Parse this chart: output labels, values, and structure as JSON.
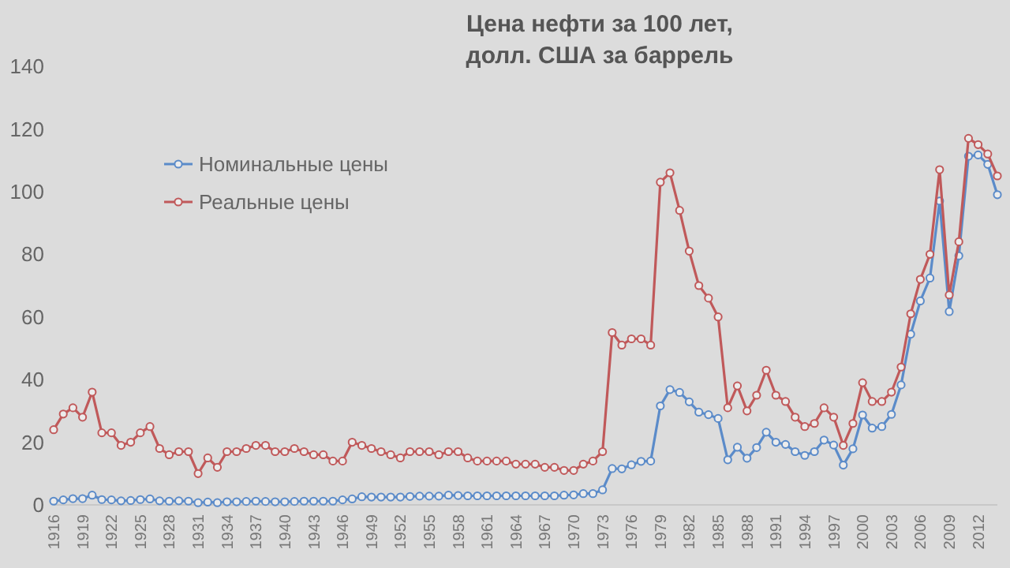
{
  "chart_data": {
    "type": "line",
    "title": "Цена нефти за 100 лет,\nдолл. США за баррель",
    "x": [
      1916,
      1917,
      1918,
      1919,
      1920,
      1921,
      1922,
      1923,
      1924,
      1925,
      1926,
      1927,
      1928,
      1929,
      1930,
      1931,
      1932,
      1933,
      1934,
      1935,
      1936,
      1937,
      1938,
      1939,
      1940,
      1941,
      1942,
      1943,
      1944,
      1945,
      1946,
      1947,
      1948,
      1949,
      1950,
      1951,
      1952,
      1953,
      1954,
      1955,
      1956,
      1957,
      1958,
      1959,
      1960,
      1961,
      1962,
      1963,
      1964,
      1965,
      1966,
      1967,
      1968,
      1969,
      1970,
      1971,
      1972,
      1973,
      1974,
      1975,
      1976,
      1977,
      1978,
      1979,
      1980,
      1981,
      1982,
      1983,
      1984,
      1985,
      1986,
      1987,
      1988,
      1989,
      1990,
      1991,
      1992,
      1993,
      1994,
      1995,
      1996,
      1997,
      1998,
      1999,
      2000,
      2001,
      2002,
      2003,
      2004,
      2005,
      2006,
      2007,
      2008,
      2009,
      2010,
      2011,
      2012,
      2013,
      2014
    ],
    "series": [
      {
        "name": "Номинальные цены",
        "color": "#5b8bc9",
        "values": [
          1.2,
          1.6,
          2,
          2,
          3.1,
          1.7,
          1.6,
          1.3,
          1.4,
          1.7,
          1.9,
          1.3,
          1.2,
          1.3,
          1.2,
          0.7,
          0.9,
          0.7,
          1,
          1,
          1.1,
          1.2,
          1.1,
          1,
          1,
          1.1,
          1.2,
          1.2,
          1.2,
          1.2,
          1.6,
          1.9,
          2.6,
          2.5,
          2.5,
          2.5,
          2.5,
          2.7,
          2.8,
          2.8,
          2.8,
          3.1,
          3,
          2.9,
          2.9,
          2.9,
          2.9,
          2.9,
          2.9,
          2.9,
          2.9,
          2.9,
          2.9,
          3.1,
          3.2,
          3.6,
          3.6,
          4.8,
          11.6,
          11.5,
          12.8,
          13.9,
          14,
          31.6,
          36.8,
          35.9,
          32.9,
          29.6,
          28.8,
          27.6,
          14.4,
          18.4,
          14.9,
          18.3,
          23.2,
          20,
          19.3,
          17,
          15.8,
          17,
          20.7,
          19.1,
          12.7,
          17.9,
          28.7,
          24.5,
          25,
          28.9,
          38.3,
          54.5,
          65.1,
          72.4,
          97,
          61.7,
          79.5,
          111.3,
          111.7,
          108.7,
          99
        ]
      },
      {
        "name": "Реальные цены",
        "color": "#c0595a",
        "values": [
          24,
          29,
          31,
          28,
          36,
          23,
          23,
          19,
          20,
          23,
          25,
          18,
          16,
          17,
          17,
          10,
          15,
          12,
          17,
          17,
          18,
          19,
          19,
          17,
          17,
          18,
          17,
          16,
          16,
          14,
          14,
          20,
          19,
          18,
          17,
          16,
          15,
          17,
          17,
          17,
          16,
          17,
          17,
          15,
          14,
          14,
          14,
          14,
          13,
          13,
          13,
          12,
          12,
          11,
          11,
          13,
          14,
          17,
          55,
          51,
          53,
          53,
          51,
          103,
          106,
          94,
          81,
          70,
          66,
          60,
          31,
          38,
          30,
          35,
          43,
          35,
          33,
          28,
          25,
          26,
          31,
          28,
          19,
          26,
          39,
          33,
          33,
          36,
          44,
          61,
          72,
          80,
          107,
          67,
          84,
          117,
          115,
          112,
          105
        ]
      }
    ],
    "xlim": [
      1916,
      2014
    ],
    "xticks": [
      1916,
      1919,
      1922,
      1925,
      1928,
      1931,
      1934,
      1937,
      1940,
      1943,
      1946,
      1949,
      1952,
      1955,
      1958,
      1961,
      1964,
      1967,
      1970,
      1973,
      1976,
      1979,
      1982,
      1985,
      1988,
      1991,
      1994,
      1997,
      2000,
      2003,
      2006,
      2009,
      2012
    ],
    "ylim": [
      0,
      140
    ],
    "yticks": [
      0,
      20,
      40,
      60,
      80,
      100,
      120,
      140
    ],
    "grid": false,
    "legend": "top left",
    "marker": "circle",
    "line_style": "solid"
  }
}
